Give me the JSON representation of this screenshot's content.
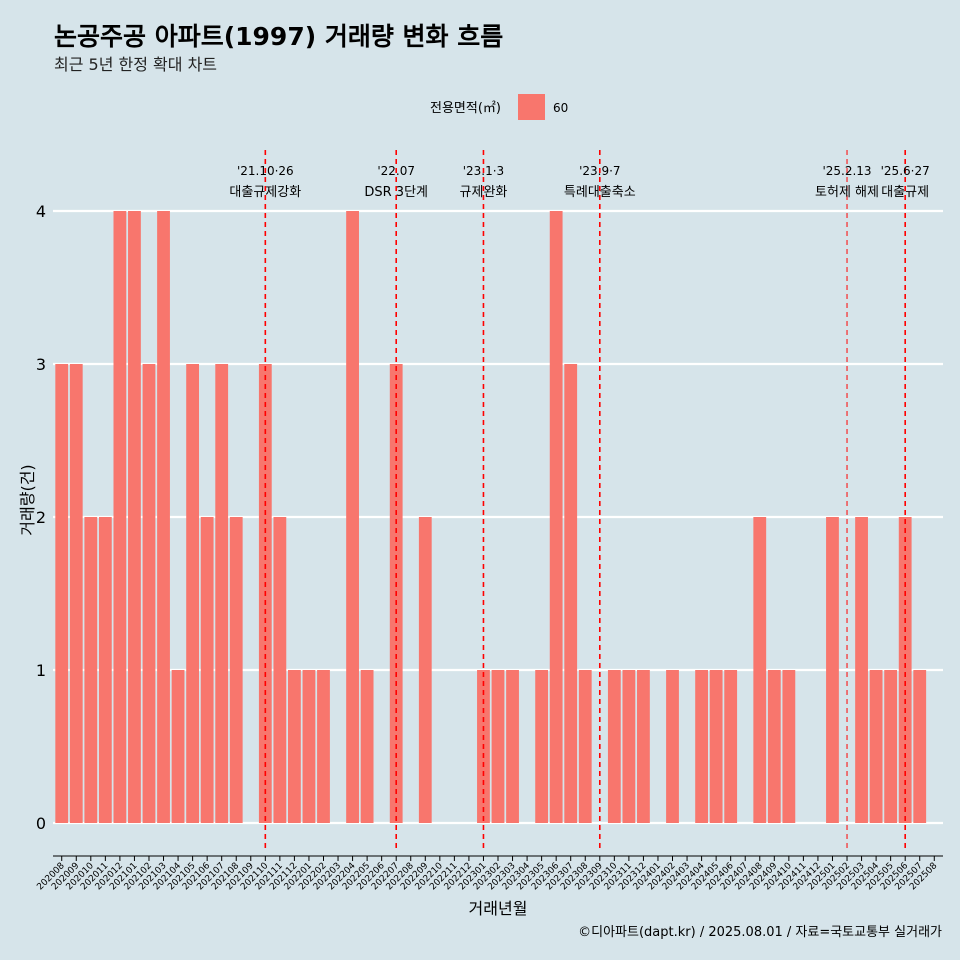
{
  "chart_data": {
    "type": "bar",
    "title": "논공주공 아파트(1997) 거래량 변화 흐름",
    "subtitle": "최근 5년 한정 확대 차트",
    "xlabel": "거래년월",
    "ylabel": "거래량(건)",
    "legend": {
      "title": "전용면적(㎡)",
      "placement": "top",
      "entries": [
        {
          "label": "60",
          "color": "#f8766d"
        }
      ]
    },
    "ylim": [
      0,
      4
    ],
    "yticks": [
      0,
      1,
      2,
      3,
      4
    ],
    "grid": true,
    "categories": [
      "202008",
      "202009",
      "202010",
      "202011",
      "202012",
      "202101",
      "202102",
      "202103",
      "202104",
      "202105",
      "202106",
      "202107",
      "202108",
      "202109",
      "202110",
      "202111",
      "202112",
      "202201",
      "202202",
      "202203",
      "202204",
      "202205",
      "202206",
      "202207",
      "202208",
      "202209",
      "202210",
      "202211",
      "202212",
      "202301",
      "202302",
      "202303",
      "202304",
      "202305",
      "202306",
      "202307",
      "202308",
      "202309",
      "202310",
      "202311",
      "202312",
      "202401",
      "202402",
      "202403",
      "202404",
      "202405",
      "202406",
      "202407",
      "202408",
      "202409",
      "202410",
      "202411",
      "202412",
      "202501",
      "202502",
      "202503",
      "202504",
      "202505",
      "202506",
      "202507",
      "202508"
    ],
    "series": [
      {
        "name": "60",
        "color": "#f8766d",
        "values": [
          3,
          3,
          2,
          2,
          4,
          4,
          3,
          4,
          1,
          3,
          2,
          3,
          2,
          null,
          3,
          2,
          1,
          1,
          1,
          null,
          4,
          1,
          null,
          3,
          null,
          2,
          null,
          null,
          null,
          1,
          1,
          1,
          null,
          1,
          4,
          3,
          1,
          null,
          1,
          1,
          1,
          null,
          1,
          null,
          1,
          1,
          1,
          null,
          2,
          1,
          1,
          null,
          null,
          2,
          null,
          2,
          1,
          1,
          2,
          1,
          null
        ]
      }
    ],
    "events": [
      {
        "category": "202110",
        "offset": 0,
        "date": "'21.10·26",
        "label": "대출규제강화",
        "major": true
      },
      {
        "category": "202207",
        "offset": 0,
        "date": "'22.07",
        "label": "DSR 3단계",
        "major": true
      },
      {
        "category": "202301",
        "offset": 0,
        "date": "'23.1·3",
        "label": "규제완화",
        "major": true
      },
      {
        "category": "202309",
        "offset": 0,
        "date": "'23.9·7",
        "label": "특례대출축소",
        "major": true
      },
      {
        "category": "202502",
        "offset": 0,
        "date": "'25.2.13",
        "label": "토허제 해제",
        "major": false
      },
      {
        "category": "202506",
        "offset": 0,
        "date": "'25.6·27",
        "label": "대출규제",
        "major": true
      }
    ],
    "caption": "©디아파트(dapt.kr) / 2025.08.01 / 자료=국토교통부 실거래가"
  }
}
